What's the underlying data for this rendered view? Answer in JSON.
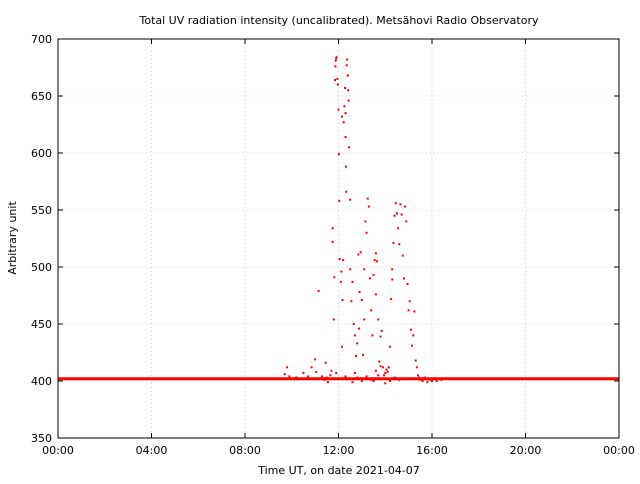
{
  "chart_data": {
    "type": "scatter",
    "title": "Total UV radiation intensity (uncalibrated). Metsähovi Radio Observatory",
    "xlabel": "Time UT, on date 2021-04-07",
    "ylabel": "Arbitrary unit",
    "xlim": [
      0,
      24
    ],
    "ylim": [
      350,
      700
    ],
    "x_unit": "hours UT",
    "grid": true,
    "xticks": [
      {
        "value": 0,
        "label": "00:00"
      },
      {
        "value": 4,
        "label": "04:00"
      },
      {
        "value": 8,
        "label": "08:00"
      },
      {
        "value": 12,
        "label": "12:00"
      },
      {
        "value": 16,
        "label": "16:00"
      },
      {
        "value": 20,
        "label": "20:00"
      },
      {
        "value": 24,
        "label": "00:00"
      }
    ],
    "yticks": [
      350,
      400,
      450,
      500,
      550,
      600,
      650,
      700
    ],
    "series": [
      {
        "color": "#ff0000",
        "baseline": {
          "x_start": 0,
          "x_end": 24,
          "y": 402
        },
        "points": [
          [
            9.7,
            406
          ],
          [
            9.8,
            412
          ],
          [
            9.9,
            404
          ],
          [
            10.2,
            403
          ],
          [
            10.5,
            407
          ],
          [
            10.7,
            404
          ],
          [
            10.85,
            412
          ],
          [
            11.0,
            419
          ],
          [
            11.05,
            408
          ],
          [
            11.15,
            479
          ],
          [
            11.3,
            404
          ],
          [
            11.4,
            401
          ],
          [
            11.45,
            416
          ],
          [
            11.5,
            403
          ],
          [
            11.55,
            399
          ],
          [
            11.6,
            402
          ],
          [
            11.65,
            405
          ],
          [
            11.7,
            409
          ],
          [
            11.75,
            522
          ],
          [
            11.75,
            534
          ],
          [
            11.8,
            454
          ],
          [
            11.82,
            491
          ],
          [
            11.85,
            664
          ],
          [
            11.87,
            676
          ],
          [
            11.88,
            681
          ],
          [
            11.9,
            683
          ],
          [
            11.92,
            684
          ],
          [
            11.95,
            665
          ],
          [
            11.97,
            660
          ],
          [
            12.0,
            638
          ],
          [
            12.02,
            599
          ],
          [
            12.03,
            558
          ],
          [
            12.05,
            507
          ],
          [
            12.1,
            487
          ],
          [
            12.12,
            496
          ],
          [
            12.15,
            632
          ],
          [
            12.15,
            430
          ],
          [
            12.17,
            471
          ],
          [
            12.2,
            506
          ],
          [
            12.22,
            627
          ],
          [
            12.25,
            641
          ],
          [
            12.28,
            657
          ],
          [
            12.3,
            635
          ],
          [
            12.3,
            614
          ],
          [
            12.32,
            588
          ],
          [
            12.33,
            566
          ],
          [
            12.35,
            677
          ],
          [
            12.37,
            682
          ],
          [
            12.4,
            668
          ],
          [
            12.42,
            655
          ],
          [
            12.43,
            646
          ],
          [
            12.45,
            605
          ],
          [
            12.5,
            559
          ],
          [
            12.5,
            498
          ],
          [
            12.55,
            470
          ],
          [
            12.6,
            487
          ],
          [
            12.65,
            450
          ],
          [
            12.7,
            440
          ],
          [
            12.75,
            422
          ],
          [
            12.8,
            433
          ],
          [
            12.85,
            511
          ],
          [
            12.88,
            446
          ],
          [
            12.9,
            478
          ],
          [
            12.95,
            513
          ],
          [
            13.0,
            471
          ],
          [
            13.05,
            423
          ],
          [
            13.1,
            454
          ],
          [
            13.1,
            498
          ],
          [
            13.15,
            540
          ],
          [
            13.2,
            530
          ],
          [
            13.25,
            560
          ],
          [
            13.3,
            553
          ],
          [
            13.35,
            490
          ],
          [
            13.4,
            462
          ],
          [
            13.45,
            440
          ],
          [
            13.5,
            493
          ],
          [
            13.55,
            506
          ],
          [
            13.6,
            512
          ],
          [
            13.6,
            476
          ],
          [
            13.65,
            505
          ],
          [
            13.7,
            454
          ],
          [
            13.75,
            417
          ],
          [
            13.8,
            439
          ],
          [
            13.85,
            444
          ],
          [
            13.9,
            412
          ],
          [
            13.95,
            405
          ],
          [
            14.0,
            398
          ],
          [
            14.05,
            410
          ],
          [
            14.1,
            408
          ],
          [
            14.15,
            412
          ],
          [
            14.2,
            430
          ],
          [
            14.25,
            472
          ],
          [
            14.3,
            489
          ],
          [
            14.3,
            498
          ],
          [
            14.35,
            521
          ],
          [
            14.4,
            545
          ],
          [
            14.45,
            556
          ],
          [
            14.5,
            547
          ],
          [
            14.55,
            534
          ],
          [
            14.6,
            520
          ],
          [
            14.65,
            555
          ],
          [
            14.7,
            546
          ],
          [
            14.75,
            510
          ],
          [
            14.8,
            490
          ],
          [
            14.85,
            553
          ],
          [
            14.9,
            540
          ],
          [
            14.95,
            485
          ],
          [
            15.0,
            462
          ],
          [
            15.05,
            470
          ],
          [
            15.1,
            445
          ],
          [
            15.15,
            431
          ],
          [
            15.2,
            440
          ],
          [
            15.25,
            461
          ],
          [
            15.3,
            418
          ],
          [
            15.35,
            412
          ],
          [
            15.4,
            405
          ],
          [
            15.45,
            403
          ],
          [
            12.5,
            402
          ],
          [
            12.6,
            399
          ],
          [
            12.7,
            407
          ],
          [
            13.0,
            400
          ],
          [
            13.2,
            404
          ],
          [
            13.4,
            401
          ],
          [
            13.6,
            409
          ],
          [
            13.8,
            413
          ],
          [
            14.0,
            407
          ],
          [
            14.2,
            400
          ],
          [
            12.1,
            402
          ],
          [
            12.3,
            404
          ],
          [
            13.3,
            402
          ],
          [
            13.7,
            405
          ],
          [
            14.4,
            403
          ],
          [
            11.9,
            407
          ],
          [
            12.8,
            403
          ],
          [
            13.5,
            400
          ],
          [
            14.6,
            401
          ],
          [
            15.5,
            401
          ],
          [
            15.6,
            400
          ],
          [
            15.7,
            403
          ],
          [
            15.8,
            399
          ],
          [
            15.9,
            401
          ],
          [
            16.0,
            400
          ],
          [
            16.1,
            402
          ],
          [
            16.2,
            400
          ],
          [
            16.4,
            401
          ]
        ]
      }
    ]
  }
}
